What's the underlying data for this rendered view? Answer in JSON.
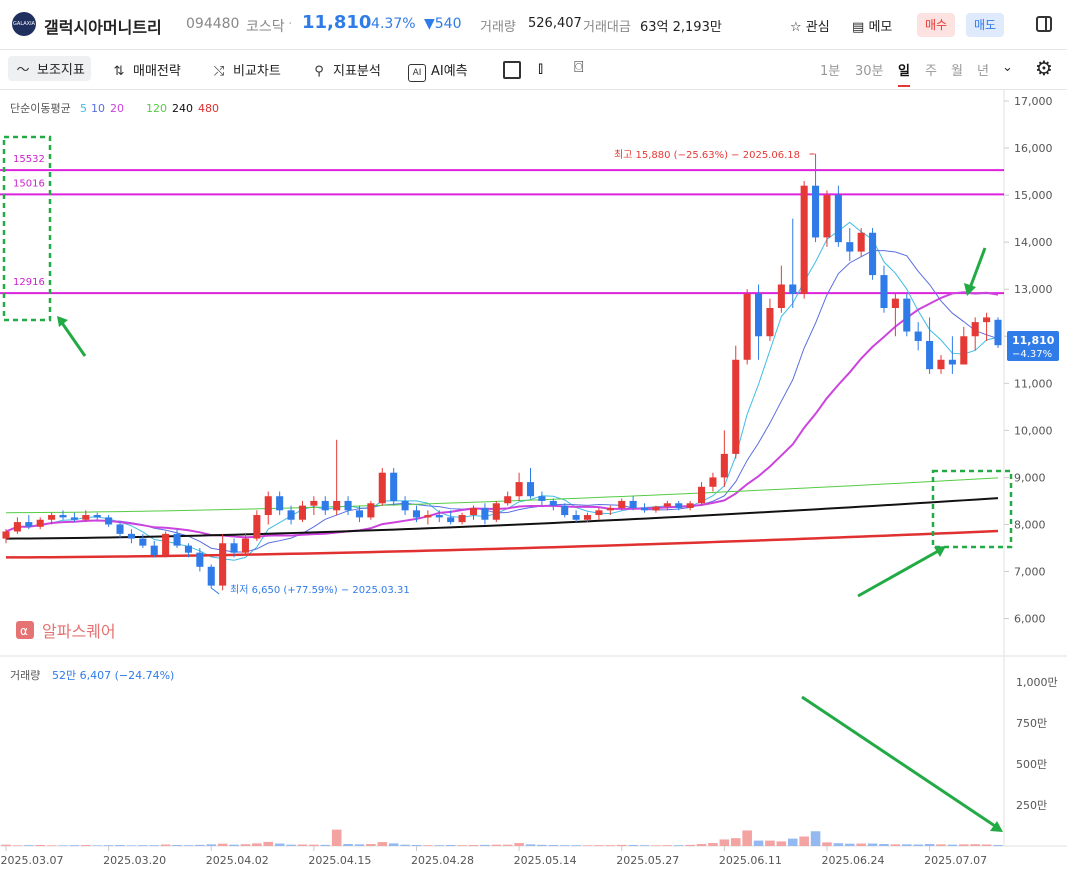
{
  "header": {
    "logo_text": "GALAXIA",
    "name": "갤럭시아머니트리",
    "code": "094480",
    "market": "코스닥",
    "price": "11,810",
    "change_pct": "-4.37%",
    "change_abs": "▼540",
    "volume_label": "거래량",
    "volume": "526,407",
    "amount_label": "거래대금",
    "amount": "63억 2,193만",
    "watch": "관심",
    "memo": "메모",
    "buy": "매수",
    "sell": "매도"
  },
  "toolbar": {
    "items": [
      "보조지표",
      "매매전략",
      "비교차트",
      "지표분석",
      "AI예측"
    ],
    "periods": [
      "1분",
      "30분",
      "일",
      "주",
      "월",
      "년"
    ],
    "active_period": "일"
  },
  "legend": {
    "prefix": "단순이동평균",
    "ma": [
      {
        "label": "5",
        "color": "#3fbce6"
      },
      {
        "label": "10",
        "color": "#5a6ee0"
      },
      {
        "label": "20",
        "color": "#cc44dd"
      },
      {
        "label": "120",
        "color": "#55cc44"
      },
      {
        "label": "240",
        "color": "#111111"
      },
      {
        "label": "480",
        "color": "#e03030"
      }
    ]
  },
  "watermark": "알파스퀘어",
  "colors": {
    "up": "#e53935",
    "down": "#2f7be8",
    "hline": "#dd22dd",
    "annot": "#22aa44"
  },
  "chart_data": {
    "type": "candlestick",
    "y_ticks": [
      "17,000",
      "16,000",
      "15,000",
      "14,000",
      "13,000",
      "12,000",
      "11,000",
      "10,000",
      "9,000",
      "8,000",
      "7,000",
      "6,000"
    ],
    "ylim": [
      5500,
      17000
    ],
    "x_ticks": [
      "2025.03.07",
      "2025.03.20",
      "2025.04.02",
      "2025.04.15",
      "2025.04.28",
      "2025.05.14",
      "2025.05.27",
      "2025.06.11",
      "2025.06.24",
      "2025.07.07"
    ],
    "horizontal_lines": [
      {
        "label": "15532",
        "value": 15532
      },
      {
        "label": "15016",
        "value": 15016
      },
      {
        "label": "12916",
        "value": 12916
      }
    ],
    "high_annotation": "최고 15,880 (−25.63%) − 2025.06.18",
    "low_annotation": "최저 6,650 (+77.59%) − 2025.03.31",
    "last_price": "11,810",
    "last_change": "−4.37%",
    "candles": [
      [
        7700,
        7900,
        7600,
        7850,
        8
      ],
      [
        7850,
        8150,
        7800,
        8050,
        4
      ],
      [
        8050,
        8200,
        7900,
        7950,
        5
      ],
      [
        7950,
        8150,
        7900,
        8100,
        6
      ],
      [
        8100,
        8250,
        8000,
        8200,
        4
      ],
      [
        8200,
        8300,
        8100,
        8150,
        4
      ],
      [
        8150,
        8250,
        8050,
        8100,
        5
      ],
      [
        8100,
        8300,
        8050,
        8200,
        6
      ],
      [
        8200,
        8250,
        8100,
        8150,
        4
      ],
      [
        8150,
        8200,
        7950,
        8000,
        5
      ],
      [
        8000,
        8050,
        7700,
        7800,
        6
      ],
      [
        7800,
        7900,
        7600,
        7700,
        4
      ],
      [
        7700,
        7800,
        7500,
        7550,
        5
      ],
      [
        7550,
        7650,
        7300,
        7350,
        5
      ],
      [
        7350,
        7850,
        7300,
        7800,
        9
      ],
      [
        7800,
        7900,
        7500,
        7550,
        6
      ],
      [
        7550,
        7600,
        7300,
        7400,
        5
      ],
      [
        7400,
        7500,
        7000,
        7100,
        7
      ],
      [
        7100,
        7150,
        6650,
        6700,
        10
      ],
      [
        6700,
        7800,
        6600,
        7600,
        14
      ],
      [
        7600,
        7700,
        7300,
        7400,
        8
      ],
      [
        7400,
        7800,
        7350,
        7700,
        11
      ],
      [
        7700,
        8300,
        7650,
        8200,
        16
      ],
      [
        8200,
        8700,
        8000,
        8600,
        25
      ],
      [
        8600,
        8700,
        8200,
        8300,
        15
      ],
      [
        8300,
        8400,
        8000,
        8100,
        8
      ],
      [
        8100,
        8500,
        8050,
        8400,
        9
      ],
      [
        8400,
        8600,
        8200,
        8500,
        8
      ],
      [
        8500,
        8600,
        8200,
        8300,
        7
      ],
      [
        8300,
        9800,
        8200,
        8500,
        100
      ],
      [
        8500,
        8600,
        8200,
        8300,
        12
      ],
      [
        8300,
        8400,
        8050,
        8150,
        10
      ],
      [
        8150,
        8500,
        8100,
        8450,
        12
      ],
      [
        8450,
        9200,
        8400,
        9100,
        24
      ],
      [
        9100,
        9200,
        8400,
        8500,
        16
      ],
      [
        8500,
        8600,
        8200,
        8300,
        8
      ],
      [
        8300,
        8400,
        8050,
        8150,
        6
      ],
      [
        8150,
        8300,
        8000,
        8200,
        5
      ],
      [
        8200,
        8300,
        8050,
        8150,
        5
      ],
      [
        8150,
        8300,
        8000,
        8050,
        6
      ],
      [
        8050,
        8250,
        8000,
        8200,
        5
      ],
      [
        8200,
        8400,
        8100,
        8350,
        6
      ],
      [
        8350,
        8450,
        8000,
        8100,
        7
      ],
      [
        8100,
        8500,
        8050,
        8450,
        8
      ],
      [
        8450,
        8700,
        8400,
        8600,
        8
      ],
      [
        8600,
        9100,
        8500,
        8900,
        18
      ],
      [
        8900,
        9200,
        8550,
        8600,
        10
      ],
      [
        8600,
        8700,
        8400,
        8500,
        7
      ],
      [
        8500,
        8550,
        8300,
        8400,
        6
      ],
      [
        8400,
        8450,
        8150,
        8200,
        5
      ],
      [
        8200,
        8300,
        8050,
        8100,
        5
      ],
      [
        8100,
        8250,
        8050,
        8200,
        4
      ],
      [
        8200,
        8350,
        8100,
        8300,
        5
      ],
      [
        8300,
        8400,
        8200,
        8350,
        5
      ],
      [
        8350,
        8550,
        8300,
        8500,
        7
      ],
      [
        8500,
        8600,
        8300,
        8350,
        6
      ],
      [
        8350,
        8450,
        8250,
        8300,
        5
      ],
      [
        8300,
        8400,
        8250,
        8380,
        4
      ],
      [
        8380,
        8500,
        8300,
        8450,
        5
      ],
      [
        8450,
        8500,
        8300,
        8350,
        5
      ],
      [
        8350,
        8500,
        8300,
        8450,
        7
      ],
      [
        8450,
        8900,
        8400,
        8800,
        12
      ],
      [
        8800,
        9100,
        8700,
        9000,
        18
      ],
      [
        9000,
        10000,
        8800,
        9500,
        40
      ],
      [
        9500,
        11800,
        9400,
        11500,
        48
      ],
      [
        11500,
        13000,
        11400,
        12900,
        95
      ],
      [
        12900,
        13100,
        11500,
        12000,
        33
      ],
      [
        12000,
        12800,
        11900,
        12600,
        33
      ],
      [
        12600,
        13500,
        12500,
        13100,
        28
      ],
      [
        13100,
        14500,
        12600,
        12900,
        45
      ],
      [
        12900,
        15300,
        12800,
        15200,
        58
      ],
      [
        15200,
        15880,
        14000,
        14100,
        90
      ],
      [
        14100,
        15100,
        13900,
        15000,
        22
      ],
      [
        15000,
        15200,
        13900,
        14000,
        17
      ],
      [
        14000,
        14300,
        13600,
        13800,
        14
      ],
      [
        13800,
        14300,
        13700,
        14200,
        15
      ],
      [
        14200,
        14300,
        13200,
        13300,
        15
      ],
      [
        13300,
        13500,
        12500,
        12600,
        12
      ],
      [
        12600,
        12900,
        12000,
        12800,
        10
      ],
      [
        12800,
        12900,
        12000,
        12100,
        10
      ],
      [
        12100,
        12300,
        11700,
        11900,
        9
      ],
      [
        11900,
        12400,
        11200,
        11300,
        12
      ],
      [
        11300,
        11600,
        11200,
        11500,
        10
      ],
      [
        11500,
        12000,
        11200,
        11400,
        8
      ],
      [
        11400,
        12200,
        11400,
        12000,
        10
      ],
      [
        12000,
        12400,
        11700,
        12300,
        11
      ],
      [
        12300,
        12500,
        11900,
        12400,
        9
      ],
      [
        12350,
        12400,
        11750,
        11810,
        6
      ]
    ],
    "volume_ticks": [
      "1,000만",
      "750만",
      "500만",
      "250만"
    ],
    "volume_max": 1050,
    "volume_title": "거래량",
    "volume_last": "52만 6,407 (−24.74%)"
  }
}
